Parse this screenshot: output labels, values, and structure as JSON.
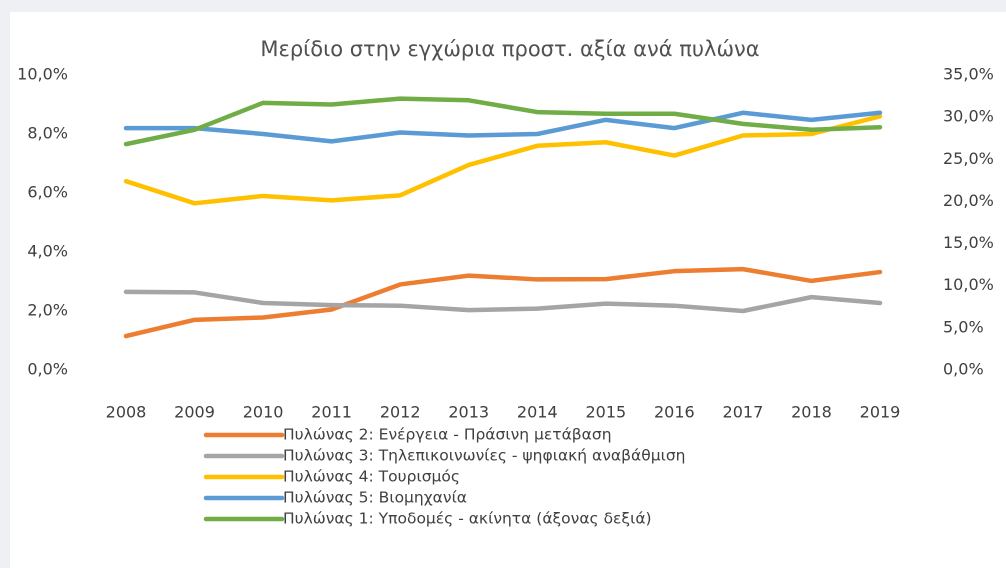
{
  "chart_data": {
    "type": "line",
    "title": "Μερίδιο στην εγχώρια προστ. αξία ανά πυλώνα",
    "categories": [
      "2008",
      "2009",
      "2010",
      "2011",
      "2012",
      "2013",
      "2014",
      "2015",
      "2016",
      "2017",
      "2018",
      "2019"
    ],
    "ylim": [
      0,
      10
    ],
    "yticks": [
      {
        "value": 0,
        "label": "0,0%"
      },
      {
        "value": 2,
        "label": "2,0%"
      },
      {
        "value": 4,
        "label": "4,0%"
      },
      {
        "value": 6,
        "label": "6,0%"
      },
      {
        "value": 8,
        "label": "8,0%"
      },
      {
        "value": 10,
        "label": "10,0%"
      }
    ],
    "y2lim": [
      0,
      35
    ],
    "y2ticks": [
      {
        "value": 0,
        "label": "0,0%"
      },
      {
        "value": 5,
        "label": "5,0%"
      },
      {
        "value": 10,
        "label": "10,0%"
      },
      {
        "value": 15,
        "label": "15,0%"
      },
      {
        "value": 20,
        "label": "20,0%"
      },
      {
        "value": 25,
        "label": "25,0%"
      },
      {
        "value": 30,
        "label": "30,0%"
      },
      {
        "value": 35,
        "label": "35,0%"
      }
    ],
    "grid": false,
    "series": [
      {
        "name": "Πυλώνας 2: Ενέργεια - Πράσινη μετάβαση",
        "color": "#ed7d31",
        "values": [
          1.15,
          1.7,
          1.78,
          2.05,
          2.9,
          3.2,
          3.07,
          3.08,
          3.35,
          3.42,
          3.02,
          3.32
        ]
      },
      {
        "name": "Πυλώνας 3: Τηλεπικοινωνίες - ψηφιακή αναβάθμιση",
        "color": "#a5a5a5",
        "values": [
          2.65,
          2.63,
          2.27,
          2.2,
          2.18,
          2.03,
          2.08,
          2.25,
          2.18,
          2.0,
          2.47,
          2.27
        ]
      },
      {
        "name": "Πυλώνας 4: Τουρισμός",
        "color": "#ffc000",
        "values": [
          6.4,
          5.65,
          5.9,
          5.75,
          5.92,
          6.95,
          7.6,
          7.72,
          7.27,
          7.95,
          8.0,
          8.6
        ]
      },
      {
        "name": "Πυλώνας 5: Βιομηχανία",
        "color": "#5b9bd5",
        "values": [
          8.2,
          8.2,
          8.0,
          7.75,
          8.05,
          7.95,
          8.0,
          8.48,
          8.2,
          8.72,
          8.48,
          8.72
        ]
      },
      {
        "name": "Πυλώνας 1: Υποδομές - ακίνητα (άξονας δεξιά)",
        "color": "#70ad47",
        "axis": "y2",
        "values": [
          26.8,
          28.5,
          31.7,
          31.5,
          32.2,
          32.0,
          30.6,
          30.4,
          30.4,
          29.2,
          28.5,
          28.8
        ]
      }
    ]
  }
}
